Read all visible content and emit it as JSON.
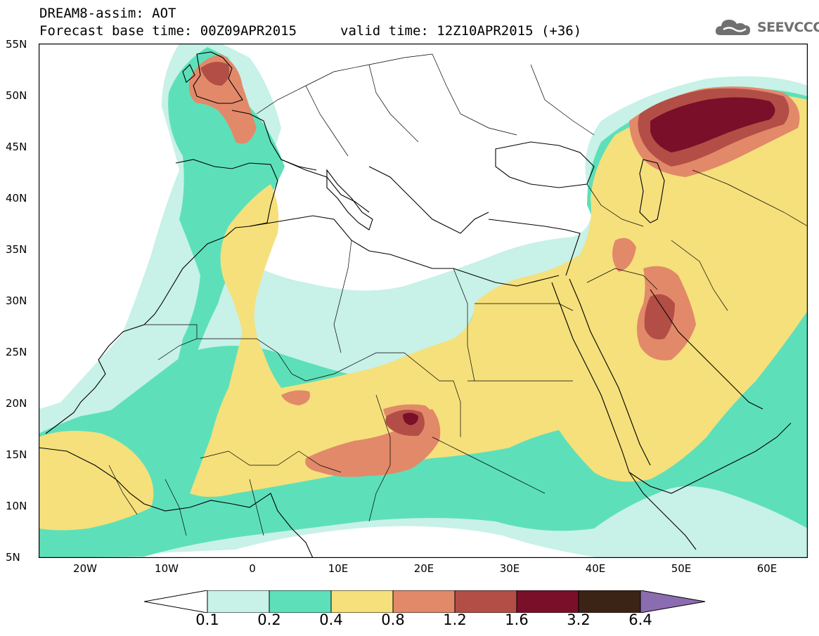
{
  "header": {
    "line1": "DREAM8-assim: AOT",
    "line2": "Forecast base time: 00Z09APR2015",
    "valid": "valid time: 12Z10APR2015 (+36)",
    "logo_text": "SEEVCCC",
    "logo_icon": "cloud-icon"
  },
  "axes": {
    "lat_labels": [
      "55N",
      "50N",
      "45N",
      "40N",
      "35N",
      "30N",
      "25N",
      "20N",
      "15N",
      "10N",
      "5N"
    ],
    "lon_labels": [
      "20W",
      "10W",
      "0",
      "10E",
      "20E",
      "30E",
      "40E",
      "50E",
      "60E"
    ]
  },
  "colorbar": {
    "levels": [
      "0.1",
      "0.2",
      "0.4",
      "0.8",
      "1.2",
      "1.6",
      "3.2",
      "6.4"
    ],
    "colors": [
      "#ffffff",
      "#c8f1e8",
      "#5de0b9",
      "#f5e07c",
      "#e2896a",
      "#b34e47",
      "#7a0f2a",
      "#3b2316",
      "#8c6cb0"
    ]
  }
}
